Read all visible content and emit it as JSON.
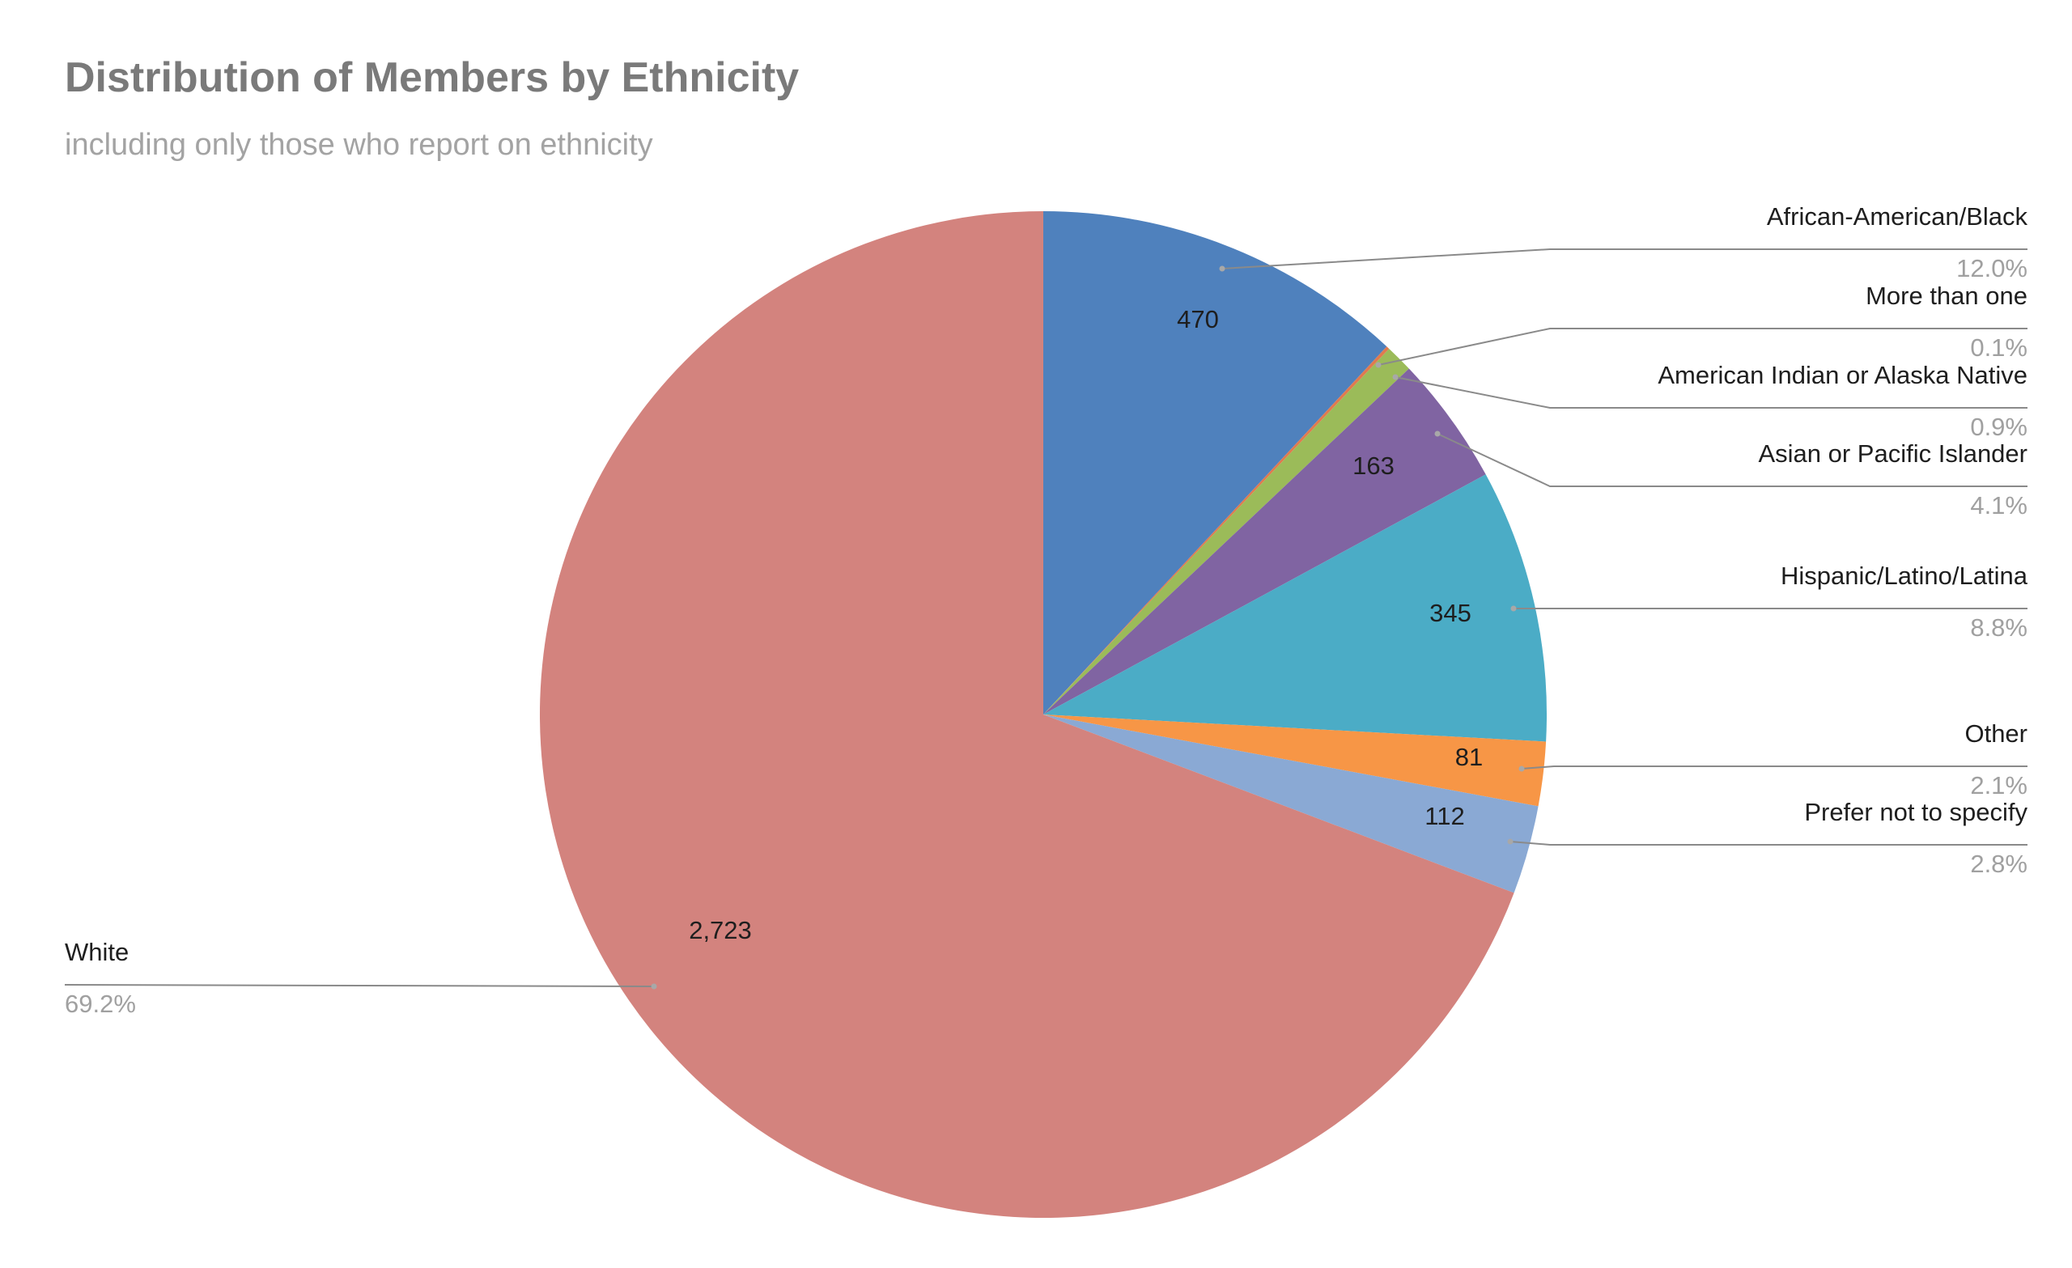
{
  "chart_data": {
    "type": "pie",
    "title": "Distribution of Members by Ethnicity",
    "subtitle": "including only those who report on ethnicity",
    "slices": [
      {
        "key": "african-american-black",
        "name": "African-American/Black",
        "value": 470,
        "value_label": "470",
        "percent_label": "12.0%",
        "color": "#4F81BD"
      },
      {
        "key": "more-than-one",
        "name": "More than one",
        "value": 4,
        "value_label": "",
        "percent_label": "0.1%",
        "color": "#E07A4F"
      },
      {
        "key": "american-indian-alaska-native",
        "name": "American Indian or Alaska Native",
        "value": 35,
        "value_label": "",
        "percent_label": "0.9%",
        "color": "#9BBB59"
      },
      {
        "key": "asian-pacific-islander",
        "name": "Asian or Pacific Islander",
        "value": 163,
        "value_label": "163",
        "percent_label": "4.1%",
        "color": "#8064A2"
      },
      {
        "key": "hispanic-latino-latina",
        "name": "Hispanic/Latino/Latina",
        "value": 345,
        "value_label": "345",
        "percent_label": "8.8%",
        "color": "#4BACC6"
      },
      {
        "key": "other",
        "name": "Other",
        "value": 81,
        "value_label": "81",
        "percent_label": "2.1%",
        "color": "#F79646"
      },
      {
        "key": "prefer-not-to-specify",
        "name": "Prefer not to specify",
        "value": 112,
        "value_label": "112",
        "percent_label": "2.8%",
        "color": "#8AA9D4"
      },
      {
        "key": "white",
        "name": "White",
        "value": 2723,
        "value_label": "2,723",
        "percent_label": "69.2%",
        "color": "#D3837E"
      }
    ],
    "start_angle": "12 o'clock",
    "direction": "clockwise",
    "legend": "none (category labels with leader lines)"
  }
}
